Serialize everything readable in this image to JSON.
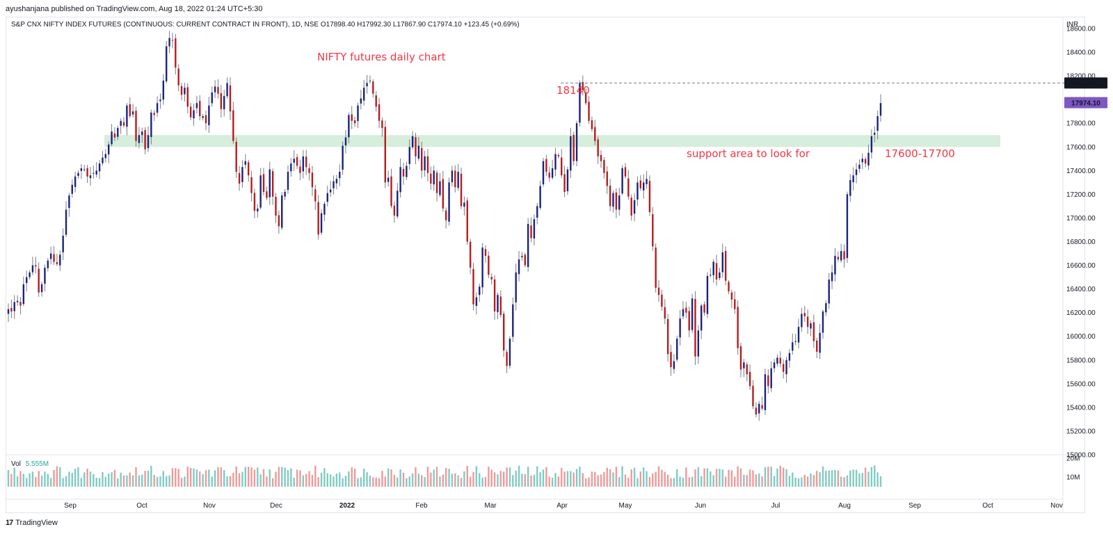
{
  "header": {
    "published": "ayushanjana published on TradingView.com, Aug 18, 2022 01:24 UTC+5:30",
    "legend": "S&P CNX NIFTY INDEX FUTURES (CONTINUOUS: CURRENT CONTRACT IN FRONT), 1D, NSE  O17898.40  H17992.30  L17867.90  C17974.10  +123.45 (+0.69%)"
  },
  "footer": {
    "logo_text": "TradingView",
    "logo_mark": "17"
  },
  "chart_data": {
    "type": "candlestick",
    "symbol": "S&P CNX NIFTY INDEX FUTURES",
    "interval": "1D",
    "currency_label": "INR",
    "price_axis": {
      "min": 15000,
      "max": 18700,
      "ticks": [
        "18600.00",
        "18400.00",
        "18200.00",
        "18000.00",
        "17800.00",
        "17600.00",
        "17400.00",
        "17200.00",
        "17000.00",
        "16800.00",
        "16600.00",
        "16400.00",
        "16200.00",
        "16000.00",
        "15800.00",
        "15600.00",
        "15400.00",
        "15200.00",
        "15000.00"
      ]
    },
    "volume_axis": {
      "ticks": [
        "20M",
        "10M"
      ],
      "legend_label": "Vol",
      "last_volume": "5.555M"
    },
    "time_axis": {
      "labels": [
        "Sep",
        "Oct",
        "Nov",
        "Dec",
        "2022",
        "Feb",
        "Mar",
        "Apr",
        "May",
        "Jun",
        "Jul",
        "Aug",
        "Sep",
        "Oct",
        "Nov"
      ]
    },
    "price_badges": [
      {
        "value": 18140.1,
        "label": "18140.10",
        "color": "#131722"
      },
      {
        "value": 17974.1,
        "label": "17974.10",
        "color": "#7e57c2"
      }
    ],
    "support_zone": {
      "low": 17600,
      "high": 17700,
      "color": "#d6eedb"
    },
    "annotations": [
      {
        "text": "NIFTY futures daily chart"
      },
      {
        "text": "18140"
      },
      {
        "text": "support area to look for"
      },
      {
        "text": "17600-17700"
      }
    ],
    "colors": {
      "up": "#1a237e",
      "down": "#b71c1c",
      "vol_up": "#80cbc4",
      "vol_down": "#ef9a9a",
      "wick": "#787b86"
    },
    "closes": [
      16230,
      16210,
      16290,
      16300,
      16260,
      16440,
      16500,
      16540,
      16600,
      16590,
      16370,
      16440,
      16580,
      16640,
      16700,
      16630,
      16610,
      16690,
      16850,
      17070,
      17190,
      17280,
      17350,
      17380,
      17420,
      17410,
      17350,
      17360,
      17380,
      17400,
      17460,
      17510,
      17540,
      17620,
      17730,
      17680,
      17760,
      17820,
      17780,
      17950,
      17860,
      17900,
      17650,
      17700,
      17730,
      17580,
      17700,
      17890,
      17870,
      17970,
      18000,
      18160,
      18450,
      18520,
      18500,
      18270,
      18120,
      18040,
      18100,
      17940,
      17850,
      17910,
      17970,
      17860,
      17860,
      17800,
      17950,
      18060,
      18110,
      18050,
      17920,
      18030,
      18140,
      17900,
      17650,
      17390,
      17290,
      17430,
      17480,
      17360,
      17210,
      17060,
      17080,
      17360,
      17220,
      17170,
      17410,
      17180,
      17020,
      16930,
      17190,
      17220,
      17390,
      17460,
      17500,
      17440,
      17380,
      17520,
      17430,
      17380,
      17260,
      17140,
      16860,
      17040,
      17120,
      17210,
      17240,
      17310,
      17330,
      17390,
      17610,
      17680,
      17870,
      17820,
      17800,
      17950,
      18010,
      18100,
      18140,
      18160,
      18050,
      17940,
      17820,
      17760,
      17300,
      17340,
      17100,
      17020,
      17230,
      17430,
      17350,
      17440,
      17600,
      17690,
      17520,
      17610,
      17400,
      17520,
      17380,
      17290,
      17400,
      17210,
      17310,
      17080,
      16980,
      17300,
      17400,
      17260,
      17390,
      17100,
      17130,
      16800,
      16580,
      16270,
      16330,
      16420,
      16750,
      16680,
      16520,
      16480,
      16210,
      16350,
      16180,
      15880,
      15750,
      15980,
      16270,
      16540,
      16650,
      16680,
      16600,
      16950,
      16830,
      16990,
      17100,
      17270,
      17480,
      17390,
      17340,
      17420,
      17540,
      17520,
      17360,
      17220,
      17410,
      17690,
      17480,
      17800,
      18140,
      18080,
      17970,
      17820,
      17750,
      17650,
      17520,
      17480,
      17380,
      17270,
      17100,
      17210,
      17070,
      17190,
      17420,
      17350,
      17180,
      17020,
      17150,
      17300,
      17250,
      17300,
      17330,
      17050,
      16760,
      16410,
      16350,
      16250,
      16150,
      15850,
      15740,
      15790,
      15980,
      16150,
      16230,
      16200,
      16050,
      16320,
      15830,
      16050,
      16260,
      16200,
      16510,
      16520,
      16630,
      16480,
      16540,
      16710,
      16470,
      16380,
      16310,
      16230,
      15900,
      15720,
      15780,
      15680,
      15580,
      15410,
      15340,
      15430,
      15390,
      15680,
      15580,
      15730,
      15780,
      15820,
      15770,
      15700,
      15800,
      15860,
      15950,
      15960,
      16080,
      16190,
      16170,
      16080,
      16110,
      15960,
      15870,
      16030,
      16210,
      16280,
      16480,
      16540,
      16680,
      16650,
      16720,
      16650,
      17200,
      17320,
      17360,
      17410,
      17450,
      17500,
      17460,
      17550,
      17690,
      17720,
      17860,
      17970
    ]
  }
}
